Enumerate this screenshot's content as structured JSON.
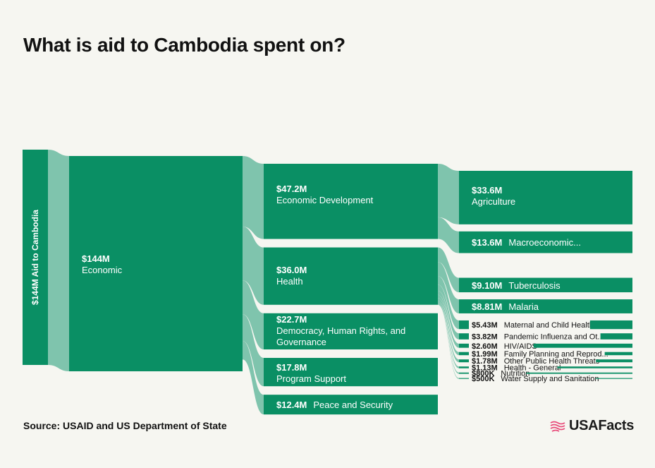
{
  "title": "What is aid to Cambodia spent on?",
  "source": "Source: USAID and US Department of State",
  "brand": {
    "name": "USAFacts",
    "icon": "flag-icon"
  },
  "colors": {
    "node": "#0a8f64",
    "link": "#7fc4ad",
    "text_on_node": "#ffffff",
    "text_dark": "#111111",
    "background": "#f6f6f1",
    "brand_flag": "#e84b7a"
  },
  "chart_data": {
    "type": "sankey",
    "title": "What is aid to Cambodia spent on?",
    "unit": "USD",
    "root": {
      "label": "Aid to Cambodia",
      "value": 144,
      "display": "$144M"
    },
    "sectors": [
      {
        "label": "Economic",
        "value": 144,
        "display": "$144M"
      }
    ],
    "categories": [
      {
        "label": "Economic Development",
        "value": 47.2,
        "display": "$47.2M"
      },
      {
        "label": "Health",
        "value": 36.0,
        "display": "$36.0M"
      },
      {
        "label": "Democracy, Human Rights, and Governance",
        "value": 22.7,
        "display": "$22.7M"
      },
      {
        "label": "Program Support",
        "value": 17.8,
        "display": "$17.8M"
      },
      {
        "label": "Peace and Security",
        "value": 12.4,
        "display": "$12.4M"
      }
    ],
    "subcategories": [
      {
        "label": "Agriculture",
        "value": 33.6,
        "display": "$33.6M",
        "parent": "Economic Development"
      },
      {
        "label": "Macroeconomic...",
        "value": 13.6,
        "display": "$13.6M",
        "parent": "Economic Development"
      },
      {
        "label": "Tuberculosis",
        "value": 9.1,
        "display": "$9.10M",
        "parent": "Health"
      },
      {
        "label": "Malaria",
        "value": 8.81,
        "display": "$8.81M",
        "parent": "Health"
      },
      {
        "label": "Maternal and Child Health",
        "value": 5.43,
        "display": "$5.43M",
        "parent": "Health"
      },
      {
        "label": "Pandemic Influenza and Ot...",
        "value": 3.82,
        "display": "$3.82M",
        "parent": "Health"
      },
      {
        "label": "HIV/AIDS",
        "value": 2.6,
        "display": "$2.60M",
        "parent": "Health"
      },
      {
        "label": "Family Planning and Reprod...",
        "value": 1.99,
        "display": "$1.99M",
        "parent": "Health"
      },
      {
        "label": "Other Public Health Threats",
        "value": 1.78,
        "display": "$1.78M",
        "parent": "Health"
      },
      {
        "label": "Health - General",
        "value": 1.13,
        "display": "$1.13M",
        "parent": "Health"
      },
      {
        "label": "Nutrition",
        "value": 0.8,
        "display": "$800K",
        "parent": "Health"
      },
      {
        "label": "Water Supply and Sanitation",
        "value": 0.5,
        "display": "$500K",
        "parent": "Health"
      }
    ]
  }
}
